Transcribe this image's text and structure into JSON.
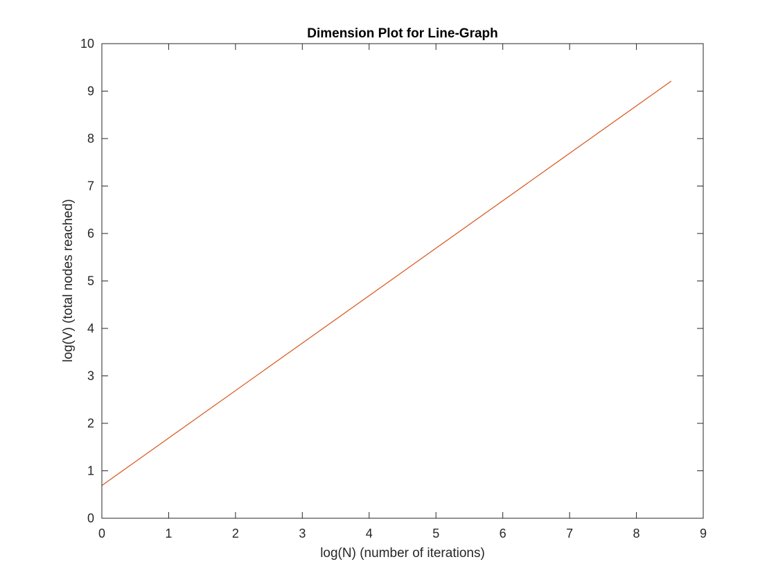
{
  "chart_data": {
    "type": "line",
    "title": "Dimension Plot for Line-Graph",
    "xlabel": "log(N) (number of iterations)",
    "ylabel": "log(V) (total nodes reached)",
    "xlim": [
      0,
      9
    ],
    "ylim": [
      0,
      10
    ],
    "xticks": [
      "0",
      "1",
      "2",
      "3",
      "4",
      "5",
      "6",
      "7",
      "8",
      "9"
    ],
    "yticks": [
      "0",
      "1",
      "2",
      "3",
      "4",
      "5",
      "6",
      "7",
      "8",
      "9",
      "10"
    ],
    "grid": false,
    "series": [
      {
        "color": "#D95319",
        "x": [
          0,
          8.52
        ],
        "y": [
          0.69,
          9.21
        ]
      }
    ]
  }
}
